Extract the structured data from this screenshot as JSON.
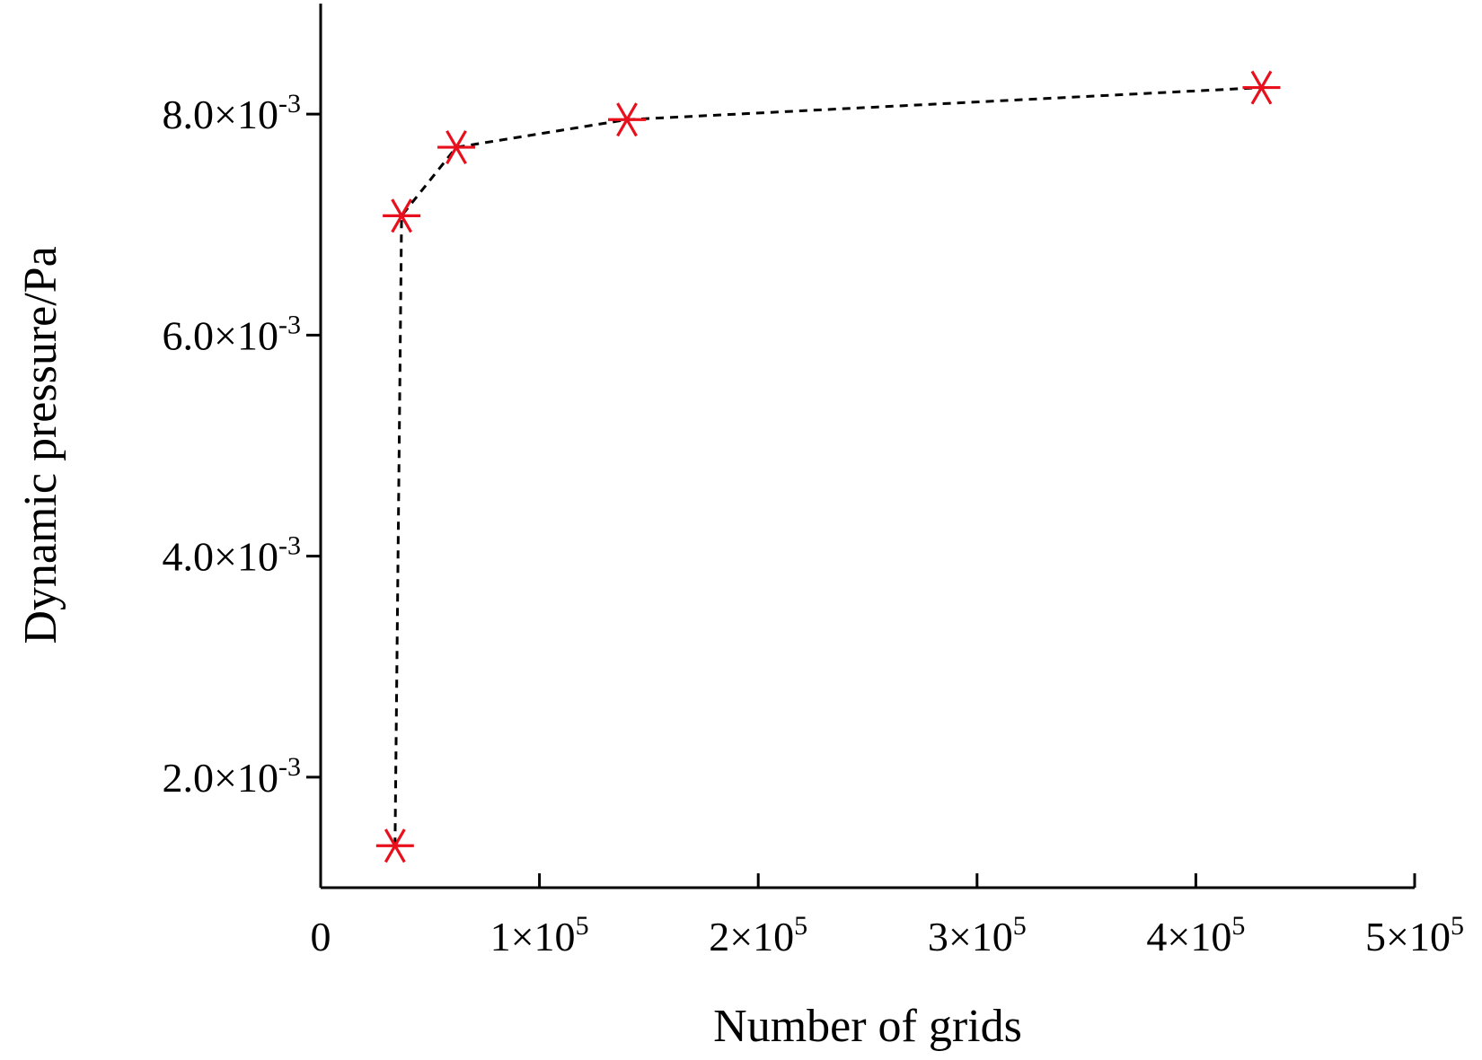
{
  "chart_data": {
    "type": "scatter",
    "title": "",
    "xlabel": "Number of grids",
    "ylabel": "Dynamic pressure/Pa",
    "xlim": [
      0,
      500000
    ],
    "ylim": [
      0.001,
      0.009
    ],
    "x_ticks": [
      {
        "value": 0,
        "label": "0"
      },
      {
        "value": 100000,
        "mantissa": "1×10",
        "exp": "5"
      },
      {
        "value": 200000,
        "mantissa": "2×10",
        "exp": "5"
      },
      {
        "value": 300000,
        "mantissa": "3×10",
        "exp": "5"
      },
      {
        "value": 400000,
        "mantissa": "4×10",
        "exp": "5"
      },
      {
        "value": 500000,
        "mantissa": "5×10",
        "exp": "5"
      }
    ],
    "y_ticks": [
      {
        "value": 0.002,
        "mantissa": "2.0×10",
        "exp": "-3"
      },
      {
        "value": 0.004,
        "mantissa": "4.0×10",
        "exp": "-3"
      },
      {
        "value": 0.006,
        "mantissa": "6.0×10",
        "exp": "-3"
      },
      {
        "value": 0.008,
        "mantissa": "8.0×10",
        "exp": "-3"
      }
    ],
    "series": [
      {
        "x": [
          34000,
          37000,
          62000,
          140000,
          430000
        ],
        "y": [
          0.00138,
          0.00708,
          0.0077,
          0.00795,
          0.00824
        ],
        "marker": "asterisk",
        "line_style": "dashed",
        "marker_color": "#e8101c",
        "line_color": "#000000"
      }
    ],
    "grid": false,
    "legend": false
  }
}
